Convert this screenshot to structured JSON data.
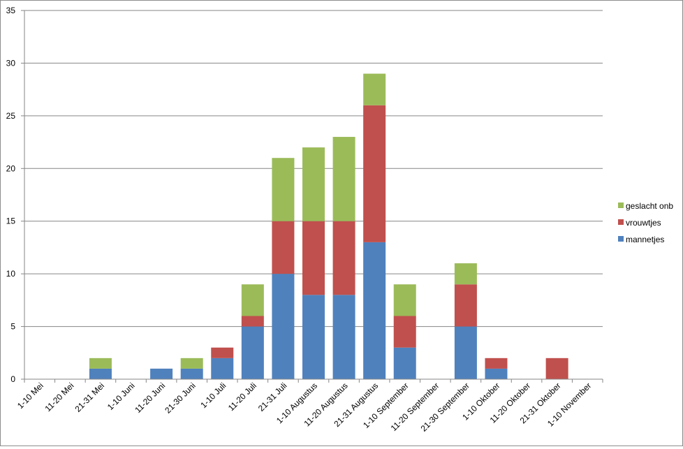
{
  "chart_data": {
    "type": "bar",
    "stacked": true,
    "title": "",
    "xlabel": "",
    "ylabel": "",
    "ylim": [
      0,
      35
    ],
    "yticks": [
      0,
      5,
      10,
      15,
      20,
      25,
      30,
      35
    ],
    "grid": true,
    "legend_position": "right",
    "categories": [
      "1-10 Mei",
      "11-20 Mei",
      "21-31 Mei",
      "1-10 Juni",
      "11-20 Juni",
      "21-30 Juni",
      "1-10 Juli",
      "11-20 Juli",
      "21-31 Juli",
      "1-10 Augustus",
      "11-20 Augustus",
      "21-31 Augustus",
      "1-10 September",
      "11-20 September",
      "21-30 September",
      "1-10 Oktober",
      "11-20 Oktober",
      "21-31 Oktober",
      "1-10 November"
    ],
    "series": [
      {
        "name": "mannetjes",
        "color": "#4f81bd",
        "values": [
          0,
          0,
          1,
          0,
          1,
          1,
          2,
          5,
          10,
          8,
          8,
          13,
          3,
          0,
          5,
          1,
          0,
          0,
          0
        ]
      },
      {
        "name": "vrouwtjes",
        "color": "#c0504d",
        "values": [
          0,
          0,
          0,
          0,
          0,
          0,
          1,
          1,
          5,
          7,
          7,
          13,
          3,
          0,
          4,
          1,
          0,
          2,
          0
        ]
      },
      {
        "name": "geslacht onb",
        "color": "#9bbb59",
        "values": [
          0,
          0,
          1,
          0,
          0,
          1,
          0,
          3,
          6,
          7,
          8,
          3,
          3,
          0,
          2,
          0,
          0,
          0,
          0
        ]
      }
    ]
  }
}
